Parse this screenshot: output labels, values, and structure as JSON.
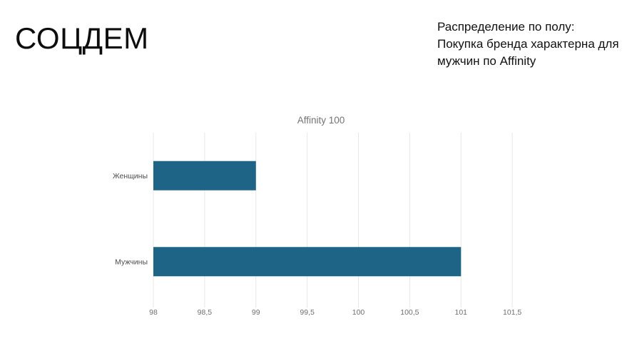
{
  "header": {
    "title": "СОЦДЕМ",
    "annotation_lines": [
      "Распределение по полу:",
      "Покупка бренда характерна для",
      "мужчин по Affinity"
    ]
  },
  "chart_data": {
    "type": "bar",
    "orientation": "horizontal",
    "title": "Affinity 100",
    "categories": [
      "Женщины",
      "Мужчины"
    ],
    "values": [
      99,
      101
    ],
    "xlim": [
      98,
      102
    ],
    "ticks": [
      98,
      98.5,
      99,
      99.5,
      100,
      100.5,
      101,
      101.5
    ],
    "tick_labels": [
      "98",
      "98,5",
      "99",
      "99,5",
      "100",
      "100,5",
      "101",
      "101,5"
    ],
    "grid": true,
    "legend": false,
    "bar_color": "#1d6486"
  },
  "colors": {
    "background": "#ffffff",
    "slide_title_text": "#0d0d0d",
    "annotation_text": "#111111",
    "chart_title_text": "#737373",
    "grid_line": "#e7e7e7",
    "tick_label": "#6f6f6f",
    "category_label": "#4d4d4d",
    "bar": "#1d6486"
  }
}
